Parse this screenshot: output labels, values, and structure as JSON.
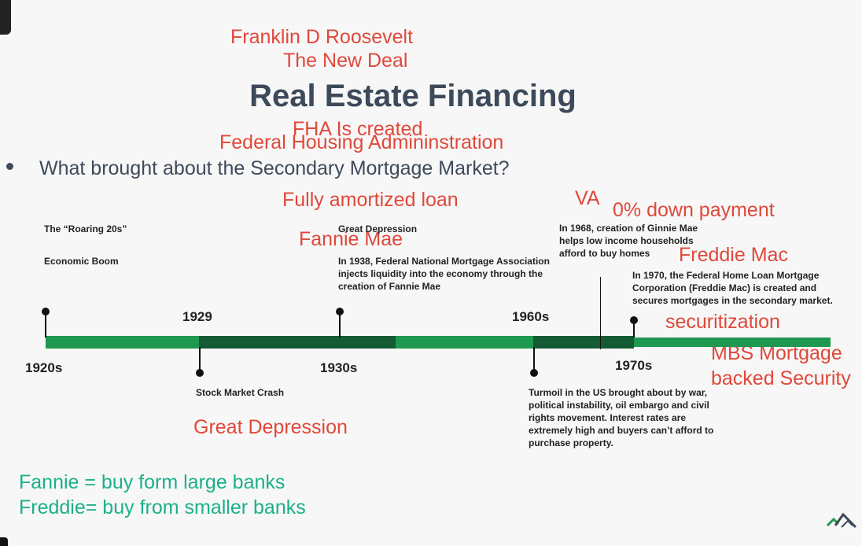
{
  "slide": {
    "title": "Real Estate Financing",
    "question": "What brought about the Secondary Mortgage Market?"
  },
  "annotations": {
    "fdr": "Franklin D Roosevelt",
    "new_deal": "The New Deal",
    "fha_created": "FHA Is created",
    "fha_full": "Federal Housing Admininstration",
    "fully_amortized": "Fully amortized loan",
    "fannie_mae": "Fannie Mae",
    "va": "VA",
    "zero_down": "0% down payment",
    "freddie_mac": "Freddie Mac",
    "securitization": "securitization",
    "mbs_line1": "MBS Mortgage",
    "mbs_line2": "backed Security",
    "great_depression": "Great Depression",
    "fannie_note": "Fannie = buy form large banks",
    "freddie_note": "Freddie= buy from smaller banks"
  },
  "timeline": {
    "events": {
      "roaring": "The “Roaring 20s”",
      "boom": "Economic Boom",
      "gd_heading": "Great Depression",
      "fannie_1938": "In 1938, Federal National Mortgage Association injects liquidity into the economy through the creation of Fannie Mae",
      "ginnie_1968": "In 1968, creation of Ginnie Mae helps low income households afford to buy homes",
      "freddie_1970": "In 1970, the Federal Home Loan Mortgage Corporation (Freddie Mac) is created and secures mortgages in the secondary market.",
      "crash": "Stock Market Crash",
      "turmoil": "Turmoil in the US brought about by war, political instability, oil embargo and civil rights movement. Interest rates are extremely high and buyers can’t afford to purchase property."
    },
    "years": {
      "y1920s": "1920s",
      "y1929": "1929",
      "y1930s": "1930s",
      "y1960s": "1960s",
      "y1970s": "1970s"
    },
    "colors": {
      "light": "#1f9850",
      "dark": "#145a32"
    }
  }
}
